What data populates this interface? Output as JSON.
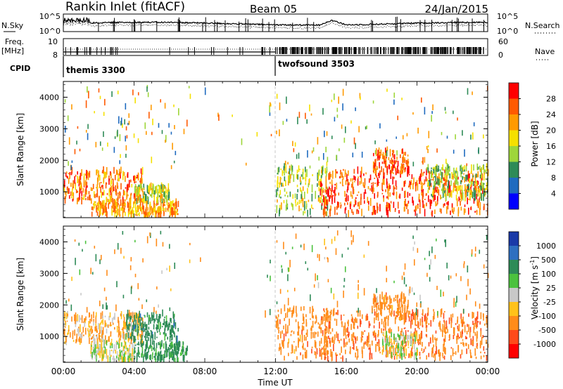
{
  "header": {
    "station": "Rankin Inlet (fitACF)",
    "beam": "Beam 05",
    "date": "24/Jan/2015"
  },
  "noise_panel": {
    "left_label": "N.Sky",
    "left_ticks": [
      "10^5",
      "10^0"
    ],
    "right_label": "N.Search",
    "right_ticks": [
      "10^5",
      "10^0"
    ]
  },
  "freq_panel": {
    "left_label_line1": "Freq.",
    "left_label_line2": "[MHz]",
    "left_ticks": [
      "10",
      "8"
    ],
    "right_label": "Nave",
    "right_ticks": [
      "60",
      "0"
    ]
  },
  "cpid": {
    "label": "CPID",
    "modes": [
      {
        "name": "themis 3300",
        "start_hour": 0,
        "end_hour": 12
      },
      {
        "name": "twofsound 3503",
        "start_hour": 12,
        "end_hour": 24
      }
    ]
  },
  "power_colorbar": {
    "label": "Power [dB]",
    "ticks": [
      "28",
      "24",
      "20",
      "16",
      "12",
      "8",
      "4"
    ],
    "colors": [
      "#ff0000",
      "#ff5a00",
      "#ff9a00",
      "#f5e000",
      "#9ed63a",
      "#2e8b57",
      "#1f6bbf",
      "#0000ff"
    ]
  },
  "velocity_colorbar": {
    "label": "Velocity [m s",
    "label_sup": "-1",
    "label_end": "]",
    "ticks": [
      "1000",
      "500",
      "100",
      "25",
      "-25",
      "-100",
      "-500",
      "-1000"
    ],
    "colors": [
      "#1a3aa8",
      "#2e6fc0",
      "#2e8b57",
      "#4cc23e",
      "#c8c8c8",
      "#ffc21a",
      "#ff8c1a",
      "#ff4a1a",
      "#ff0000"
    ]
  },
  "chart_data": [
    {
      "type": "heatmap",
      "title": "Power",
      "xlabel": "Time UT",
      "ylabel": "Slant Range [km]",
      "x_ticks": [
        "00:00",
        "04:00",
        "08:00",
        "12:00",
        "16:00",
        "20:00",
        "00:00"
      ],
      "y_ticks": [
        "1000",
        "2000",
        "3000",
        "4000"
      ],
      "xlim": [
        0,
        24
      ],
      "ylim": [
        180,
        4500
      ],
      "colorbar": "Power [dB]",
      "echo_regions": [
        {
          "x": [
            0.0,
            4.5
          ],
          "y": [
            700,
            1700
          ],
          "value": 24
        },
        {
          "x": [
            1.5,
            6.5
          ],
          "y": [
            250,
            700
          ],
          "value": 22
        },
        {
          "x": [
            4.0,
            6.0
          ],
          "y": [
            700,
            1200
          ],
          "value": 16
        },
        {
          "x": [
            12.0,
            15.0
          ],
          "y": [
            300,
            1800
          ],
          "value": 16
        },
        {
          "x": [
            14.5,
            24.0
          ],
          "y": [
            300,
            1700
          ],
          "value": 26
        },
        {
          "x": [
            17.5,
            19.5
          ],
          "y": [
            1600,
            2300
          ],
          "value": 26
        },
        {
          "x": [
            20.5,
            24.0
          ],
          "y": [
            800,
            1800
          ],
          "value": 14
        }
      ]
    },
    {
      "type": "heatmap",
      "title": "Velocity",
      "xlabel": "Time UT",
      "ylabel": "Slant Range [km]",
      "x_ticks": [
        "00:00",
        "04:00",
        "08:00",
        "12:00",
        "16:00",
        "20:00",
        "00:00"
      ],
      "y_ticks": [
        "1000",
        "2000",
        "3000",
        "4000"
      ],
      "xlim": [
        0,
        24
      ],
      "ylim": [
        180,
        4500
      ],
      "colorbar": "Velocity [m s-1]",
      "echo_regions": [
        {
          "x": [
            0.0,
            4.5
          ],
          "y": [
            800,
            1700
          ],
          "value": -100
        },
        {
          "x": [
            1.5,
            4.0
          ],
          "y": [
            250,
            800
          ],
          "value": 0
        },
        {
          "x": [
            3.5,
            6.5
          ],
          "y": [
            900,
            1700
          ],
          "value": 300
        },
        {
          "x": [
            4.0,
            7.0
          ],
          "y": [
            250,
            800
          ],
          "value": 200
        },
        {
          "x": [
            12.0,
            15.0
          ],
          "y": [
            300,
            1900
          ],
          "value": -300
        },
        {
          "x": [
            14.5,
            24.0
          ],
          "y": [
            300,
            1800
          ],
          "value": -400
        },
        {
          "x": [
            18.0,
            20.0
          ],
          "y": [
            350,
            1100
          ],
          "value": 0
        },
        {
          "x": [
            17.5,
            19.5
          ],
          "y": [
            1600,
            2300
          ],
          "value": -300
        }
      ]
    }
  ]
}
